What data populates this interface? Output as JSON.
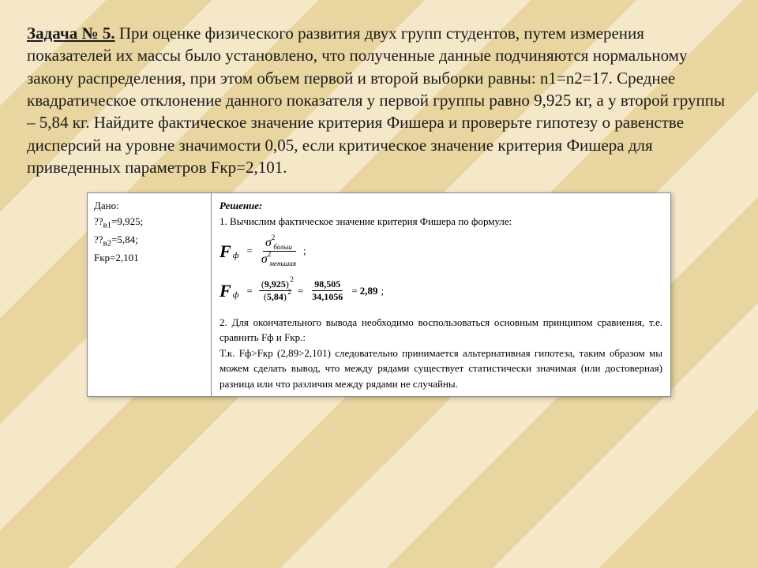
{
  "problem": {
    "title": "Задача № 5.",
    "body": " При оценке физического развития двух групп студентов, путем измерения показателей их массы было установлено, что полученные данные подчиняются нормальному закону распределения, при этом объем первой и второй выборки равны: n1=n2=17. Среднее квадратическое отклонение данного показателя у первой группы равно 9,925 кг, а у второй группы – 5,84 кг. Найдите фактическое значение критерия Фишера и проверьте гипотезу о равенстве дисперсий на уровне значимости 0,05, если критическое значение критерия Фишера  для приведенных параметров Fкр=2,101."
  },
  "given": {
    "header": "Дано:",
    "line1_prefix": "??",
    "line1_sub": "в1",
    "line1_val": "=9,925;",
    "line2_prefix": "??",
    "line2_sub": "в2",
    "line2_val": "=5,84;",
    "line3": "Fкр=2,101"
  },
  "solution": {
    "header": "Решение:",
    "step1": "1. Вычислим фактическое значение критерия Фишера по формуле:",
    "formula1": {
      "F": "F",
      "sub": "ф",
      "sigma": "σ",
      "exp": "2",
      "num_label": "больш",
      "den_label": "меньшая",
      "tail": ";"
    },
    "formula2": {
      "F": "F",
      "sub": "ф",
      "num1_base": "9,925",
      "den1_base": "5,84",
      "exp": "2",
      "num2": "98,505",
      "den2": "34,1056",
      "result": "2,89",
      "tail": ";"
    },
    "step2": "2. Для окончательного вывода необходимо воспользоваться основным принципом сравнения, т.е. сравнить Fф и Fкр.:",
    "conclusion": "Т.к. Fф>Fкр (2,89>2,101) следовательно принимается альтернативная гипотеза, таким образом мы можем сделать вывод, что между рядами существует статистически значимая (или достоверная) разница или что различия между рядами не случайны."
  },
  "style": {
    "bg_light": "#f5e8c8",
    "bg_dark": "#e8d5a0",
    "text_color": "#1a1a1a",
    "box_bg": "#ffffff",
    "box_border": "#888888"
  }
}
